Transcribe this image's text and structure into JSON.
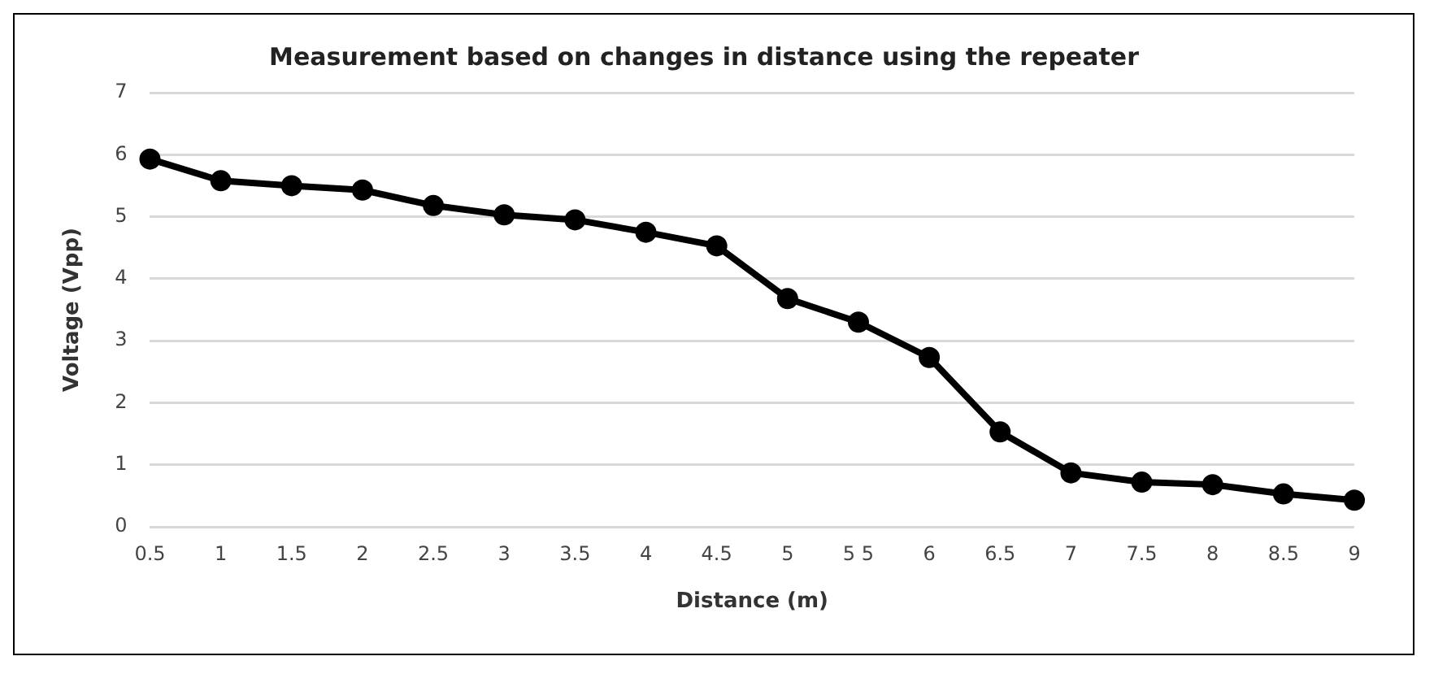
{
  "chart_data": {
    "type": "line",
    "title": "Measurement based on changes in distance using the repeater",
    "xlabel": "Distance (m)",
    "ylabel": "Voltage (Vpp)",
    "categories": [
      "0.5",
      "1",
      "1.5",
      "2",
      "2.5",
      "3",
      "3.5",
      "4",
      "4.5",
      "5",
      "5 5",
      "6",
      "6.5",
      "7",
      "7.5",
      "8",
      "8.5",
      "9"
    ],
    "series": [
      {
        "color": "#000000",
        "values": [
          5.93,
          5.58,
          5.5,
          5.43,
          5.18,
          5.03,
          4.95,
          4.75,
          4.53,
          3.68,
          3.3,
          2.73,
          1.53,
          0.87,
          0.72,
          0.68,
          0.53,
          0.43
        ]
      }
    ],
    "ylim": [
      0,
      7
    ],
    "yticks": [
      0,
      1,
      2,
      3,
      4,
      5,
      6,
      7
    ],
    "grid": "y",
    "legend": false,
    "marker": "circle",
    "line_style": "solid"
  }
}
